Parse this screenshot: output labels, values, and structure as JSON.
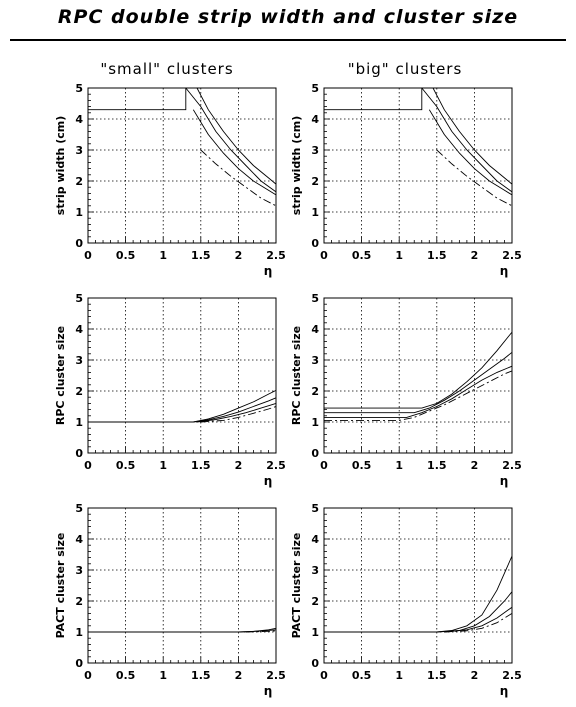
{
  "title": "RPC double strip width and cluster size",
  "columns": [
    "\"small\" clusters",
    "\"big\" clusters"
  ],
  "chart_data": [
    {
      "type": "line",
      "id": "strip-width-small",
      "column": "\"small\" clusters",
      "xlabel": "η",
      "ylabel": "strip width (cm)",
      "xlim": [
        0,
        2.5
      ],
      "ylim": [
        0,
        5
      ],
      "xticks": [
        "0",
        "0.5",
        "1",
        "1.5",
        "2",
        "2.5"
      ],
      "yticks": [
        "0",
        "1",
        "2",
        "3",
        "4",
        "5"
      ],
      "grid": true,
      "series": [
        {
          "style": "solid",
          "points": [
            [
              0,
              4.3
            ],
            [
              1.3,
              4.3
            ],
            [
              1.3,
              5
            ]
          ]
        },
        {
          "style": "solid",
          "points": [
            [
              1.45,
              5
            ],
            [
              1.6,
              4.3
            ],
            [
              1.8,
              3.6
            ],
            [
              2.0,
              3.0
            ],
            [
              2.2,
              2.5
            ],
            [
              2.4,
              2.1
            ],
            [
              2.5,
              1.9
            ]
          ]
        },
        {
          "style": "solid",
          "points": [
            [
              1.3,
              5
            ],
            [
              1.5,
              4.4
            ],
            [
              1.7,
              3.6
            ],
            [
              1.9,
              3.0
            ],
            [
              2.1,
              2.5
            ],
            [
              2.3,
              2.0
            ],
            [
              2.5,
              1.65
            ]
          ]
        },
        {
          "style": "solid",
          "points": [
            [
              1.4,
              4.3
            ],
            [
              1.6,
              3.5
            ],
            [
              1.8,
              2.9
            ],
            [
              2.0,
              2.4
            ],
            [
              2.2,
              2.0
            ],
            [
              2.4,
              1.7
            ],
            [
              2.5,
              1.55
            ]
          ]
        },
        {
          "style": "dashdot",
          "points": [
            [
              1.5,
              3.0
            ],
            [
              1.7,
              2.55
            ],
            [
              1.9,
              2.15
            ],
            [
              2.1,
              1.8
            ],
            [
              2.3,
              1.45
            ],
            [
              2.5,
              1.2
            ]
          ]
        }
      ]
    },
    {
      "type": "line",
      "id": "strip-width-big",
      "column": "\"big\" clusters",
      "xlabel": "η",
      "ylabel": "strip width (cm)",
      "xlim": [
        0,
        2.5
      ],
      "ylim": [
        0,
        5
      ],
      "xticks": [
        "0",
        "0.5",
        "1",
        "1.5",
        "2",
        "2.5"
      ],
      "yticks": [
        "0",
        "1",
        "2",
        "3",
        "4",
        "5"
      ],
      "grid": true,
      "series": [
        {
          "style": "solid",
          "points": [
            [
              0,
              4.3
            ],
            [
              1.3,
              4.3
            ],
            [
              1.3,
              5
            ]
          ]
        },
        {
          "style": "solid",
          "points": [
            [
              1.45,
              5
            ],
            [
              1.6,
              4.3
            ],
            [
              1.8,
              3.6
            ],
            [
              2.0,
              3.0
            ],
            [
              2.2,
              2.5
            ],
            [
              2.4,
              2.1
            ],
            [
              2.5,
              1.9
            ]
          ]
        },
        {
          "style": "solid",
          "points": [
            [
              1.3,
              5
            ],
            [
              1.5,
              4.4
            ],
            [
              1.7,
              3.6
            ],
            [
              1.9,
              3.0
            ],
            [
              2.1,
              2.5
            ],
            [
              2.3,
              2.0
            ],
            [
              2.5,
              1.65
            ]
          ]
        },
        {
          "style": "solid",
          "points": [
            [
              1.4,
              4.3
            ],
            [
              1.6,
              3.5
            ],
            [
              1.8,
              2.9
            ],
            [
              2.0,
              2.4
            ],
            [
              2.2,
              2.0
            ],
            [
              2.4,
              1.7
            ],
            [
              2.5,
              1.55
            ]
          ]
        },
        {
          "style": "dashdot",
          "points": [
            [
              1.5,
              3.0
            ],
            [
              1.7,
              2.55
            ],
            [
              1.9,
              2.15
            ],
            [
              2.1,
              1.8
            ],
            [
              2.3,
              1.45
            ],
            [
              2.5,
              1.2
            ]
          ]
        }
      ]
    },
    {
      "type": "line",
      "id": "rpc-cluster-small",
      "column": "\"small\" clusters",
      "xlabel": "η",
      "ylabel": "RPC cluster size",
      "xlim": [
        0,
        2.5
      ],
      "ylim": [
        0,
        5
      ],
      "xticks": [
        "0",
        "0.5",
        "1",
        "1.5",
        "2",
        "2.5"
      ],
      "yticks": [
        "0",
        "1",
        "2",
        "3",
        "4",
        "5"
      ],
      "grid": true,
      "series": [
        {
          "style": "solid",
          "points": [
            [
              0,
              1.0
            ],
            [
              1.4,
              1.0
            ],
            [
              1.6,
              1.1
            ],
            [
              1.8,
              1.25
            ],
            [
              2.0,
              1.45
            ],
            [
              2.2,
              1.65
            ],
            [
              2.4,
              1.9
            ],
            [
              2.5,
              2.02
            ]
          ]
        },
        {
          "style": "solid",
          "points": [
            [
              1.4,
              1.0
            ],
            [
              1.6,
              1.07
            ],
            [
              1.8,
              1.18
            ],
            [
              2.0,
              1.32
            ],
            [
              2.2,
              1.5
            ],
            [
              2.4,
              1.68
            ],
            [
              2.5,
              1.78
            ]
          ]
        },
        {
          "style": "solid",
          "points": [
            [
              1.45,
              1.0
            ],
            [
              1.7,
              1.08
            ],
            [
              1.9,
              1.18
            ],
            [
              2.1,
              1.3
            ],
            [
              2.3,
              1.45
            ],
            [
              2.5,
              1.6
            ]
          ]
        },
        {
          "style": "dashdot",
          "points": [
            [
              1.5,
              1.0
            ],
            [
              1.8,
              1.05
            ],
            [
              2.0,
              1.15
            ],
            [
              2.2,
              1.28
            ],
            [
              2.4,
              1.42
            ],
            [
              2.5,
              1.5
            ]
          ]
        }
      ]
    },
    {
      "type": "line",
      "id": "rpc-cluster-big",
      "column": "\"big\" clusters",
      "xlabel": "η",
      "ylabel": "RPC cluster size",
      "xlim": [
        0,
        2.5
      ],
      "ylim": [
        0,
        5
      ],
      "xticks": [
        "0",
        "0.5",
        "1",
        "1.5",
        "2",
        "2.5"
      ],
      "yticks": [
        "0",
        "1",
        "2",
        "3",
        "4",
        "5"
      ],
      "grid": true,
      "series": [
        {
          "style": "solid",
          "points": [
            [
              0,
              1.45
            ],
            [
              1.3,
              1.45
            ],
            [
              1.5,
              1.6
            ],
            [
              1.7,
              1.9
            ],
            [
              1.9,
              2.3
            ],
            [
              2.1,
              2.75
            ],
            [
              2.3,
              3.3
            ],
            [
              2.5,
              3.9
            ]
          ]
        },
        {
          "style": "solid",
          "points": [
            [
              0,
              1.3
            ],
            [
              1.2,
              1.3
            ],
            [
              1.4,
              1.45
            ],
            [
              1.6,
              1.7
            ],
            [
              1.8,
              2.0
            ],
            [
              2.0,
              2.35
            ],
            [
              2.2,
              2.7
            ],
            [
              2.4,
              3.05
            ],
            [
              2.5,
              3.25
            ]
          ]
        },
        {
          "style": "solid",
          "points": [
            [
              0,
              1.15
            ],
            [
              1.1,
              1.15
            ],
            [
              1.3,
              1.3
            ],
            [
              1.5,
              1.5
            ],
            [
              1.7,
              1.75
            ],
            [
              1.9,
              2.05
            ],
            [
              2.1,
              2.35
            ],
            [
              2.3,
              2.6
            ],
            [
              2.5,
              2.8
            ]
          ]
        },
        {
          "style": "dashdot",
          "points": [
            [
              0,
              1.05
            ],
            [
              1.0,
              1.05
            ],
            [
              1.2,
              1.15
            ],
            [
              1.4,
              1.35
            ],
            [
              1.6,
              1.55
            ],
            [
              1.8,
              1.8
            ],
            [
              2.0,
              2.05
            ],
            [
              2.2,
              2.3
            ],
            [
              2.4,
              2.55
            ],
            [
              2.5,
              2.65
            ]
          ]
        }
      ]
    },
    {
      "type": "line",
      "id": "pact-cluster-small",
      "column": "\"small\" clusters",
      "xlabel": "η",
      "ylabel": "PACT cluster size",
      "xlim": [
        0,
        2.5
      ],
      "ylim": [
        0,
        5
      ],
      "xticks": [
        "0",
        "0.5",
        "1",
        "1.5",
        "2",
        "2.5"
      ],
      "yticks": [
        "0",
        "1",
        "2",
        "3",
        "4",
        "5"
      ],
      "grid": true,
      "series": [
        {
          "style": "solid",
          "points": [
            [
              0,
              1.0
            ],
            [
              2.0,
              1.0
            ],
            [
              2.2,
              1.02
            ],
            [
              2.4,
              1.07
            ],
            [
              2.5,
              1.12
            ]
          ]
        },
        {
          "style": "solid",
          "points": [
            [
              2.0,
              1.0
            ],
            [
              2.3,
              1.03
            ],
            [
              2.5,
              1.07
            ]
          ]
        },
        {
          "style": "dashdot",
          "points": [
            [
              2.1,
              1.0
            ],
            [
              2.4,
              1.02
            ],
            [
              2.5,
              1.04
            ]
          ]
        }
      ]
    },
    {
      "type": "line",
      "id": "pact-cluster-big",
      "column": "\"big\" clusters",
      "xlabel": "η",
      "ylabel": "PACT cluster size",
      "xlim": [
        0,
        2.5
      ],
      "ylim": [
        0,
        5
      ],
      "xticks": [
        "0",
        "0.5",
        "1",
        "1.5",
        "2",
        "2.5"
      ],
      "yticks": [
        "0",
        "1",
        "2",
        "3",
        "4",
        "5"
      ],
      "grid": true,
      "series": [
        {
          "style": "solid",
          "points": [
            [
              0,
              1.0
            ],
            [
              1.5,
              1.0
            ],
            [
              1.7,
              1.05
            ],
            [
              1.9,
              1.2
            ],
            [
              2.1,
              1.55
            ],
            [
              2.3,
              2.35
            ],
            [
              2.5,
              3.45
            ]
          ]
        },
        {
          "style": "solid",
          "points": [
            [
              1.5,
              1.0
            ],
            [
              1.8,
              1.05
            ],
            [
              2.0,
              1.2
            ],
            [
              2.2,
              1.5
            ],
            [
              2.4,
              2.0
            ],
            [
              2.5,
              2.3
            ]
          ]
        },
        {
          "style": "solid",
          "points": [
            [
              1.6,
              1.0
            ],
            [
              1.9,
              1.07
            ],
            [
              2.1,
              1.2
            ],
            [
              2.3,
              1.45
            ],
            [
              2.5,
              1.8
            ]
          ]
        },
        {
          "style": "dashdot",
          "points": [
            [
              1.6,
              1.0
            ],
            [
              1.9,
              1.04
            ],
            [
              2.1,
              1.12
            ],
            [
              2.3,
              1.3
            ],
            [
              2.5,
              1.6
            ]
          ]
        }
      ]
    }
  ]
}
